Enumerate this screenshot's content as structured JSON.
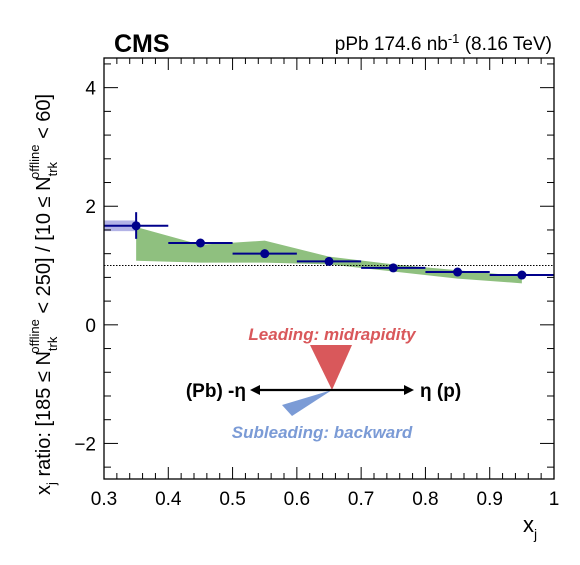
{
  "header": {
    "experiment": "CMS",
    "collision": "pPb",
    "luminosity_value": "174.6",
    "luminosity_unit_base": "nb",
    "luminosity_unit_exp": "-1",
    "energy": "(8.16 TeV)"
  },
  "diagram": {
    "leading_label": "Leading: midrapidity",
    "subleading_label": "Subleading: backward",
    "left_label": "(Pb) -η",
    "right_label": "η (p)",
    "leading_color": "#d9585b",
    "subleading_color": "#7b9bd6"
  },
  "colors": {
    "points": "#00008b",
    "syst_fill": "#8fc07f",
    "first_bin_box": "#b3b3e6",
    "reference_line": "#000000"
  },
  "chart_data": {
    "type": "scatter",
    "xlabel": "x_j",
    "ylabel": "x_j ratio: [185 ≤ N_trk^offline < 250] / [10 ≤ N_trk^offline < 60]",
    "xlim": [
      0.3,
      1.0
    ],
    "ylim": [
      -2.6,
      4.5
    ],
    "x_ticks": [
      "0.3",
      "0.4",
      "0.5",
      "0.6",
      "0.7",
      "0.8",
      "0.9",
      "1"
    ],
    "y_ticks": [
      "−2",
      "0",
      "2",
      "4"
    ],
    "reference_line_y": 1.0,
    "grid": false,
    "points": [
      {
        "x": 0.35,
        "xlow": 0.3,
        "xhigh": 0.4,
        "y": 1.67,
        "ylow": 1.45,
        "yhigh": 1.9
      },
      {
        "x": 0.45,
        "xlow": 0.4,
        "xhigh": 0.5,
        "y": 1.38,
        "ylow": 1.35,
        "yhigh": 1.41
      },
      {
        "x": 0.55,
        "xlow": 0.5,
        "xhigh": 0.6,
        "y": 1.2,
        "ylow": 1.18,
        "yhigh": 1.22
      },
      {
        "x": 0.65,
        "xlow": 0.6,
        "xhigh": 0.7,
        "y": 1.07,
        "ylow": 1.05,
        "yhigh": 1.09
      },
      {
        "x": 0.75,
        "xlow": 0.7,
        "xhigh": 0.8,
        "y": 0.96,
        "ylow": 0.94,
        "yhigh": 0.98
      },
      {
        "x": 0.85,
        "xlow": 0.8,
        "xhigh": 0.9,
        "y": 0.89,
        "ylow": 0.87,
        "yhigh": 0.91
      },
      {
        "x": 0.95,
        "xlow": 0.9,
        "xhigh": 1.0,
        "y": 0.84,
        "ylow": 0.82,
        "yhigh": 0.86
      }
    ],
    "syst_band": {
      "x": [
        0.35,
        0.45,
        0.55,
        0.65,
        0.75,
        0.85,
        0.95
      ],
      "upper": [
        1.65,
        1.35,
        1.42,
        1.15,
        1.02,
        0.92,
        0.82
      ],
      "lower": [
        1.08,
        1.05,
        1.05,
        1.02,
        0.9,
        0.78,
        0.7
      ]
    },
    "first_bin_syst": {
      "xlow": 0.3,
      "xhigh": 0.35,
      "ylow": 1.58,
      "yhigh": 1.76
    }
  }
}
